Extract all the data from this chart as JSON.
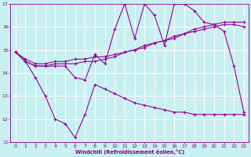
{
  "xlabel": "Windchill (Refroidissement éolien,°C)",
  "xlim": [
    -0.5,
    23.5
  ],
  "ylim": [
    11,
    17
  ],
  "yticks": [
    11,
    12,
    13,
    14,
    15,
    16,
    17
  ],
  "xticks": [
    0,
    1,
    2,
    3,
    4,
    5,
    6,
    7,
    8,
    9,
    10,
    11,
    12,
    13,
    14,
    15,
    16,
    17,
    18,
    19,
    20,
    21,
    22,
    23
  ],
  "background_color": "#c8f0f0",
  "line_color": "#990099",
  "grid_color": "#ffffff",
  "series1_x": [
    0,
    1,
    2,
    3,
    4,
    5,
    6,
    7,
    8,
    9,
    10,
    11,
    12,
    13,
    14,
    15,
    16,
    17,
    18,
    19,
    20,
    21,
    22,
    23
  ],
  "series1_y": [
    14.9,
    14.5,
    14.3,
    14.3,
    14.3,
    14.3,
    13.8,
    13.7,
    14.8,
    14.4,
    15.9,
    17.0,
    15.5,
    17.0,
    16.5,
    15.2,
    17.0,
    17.0,
    16.7,
    16.2,
    16.1,
    15.8,
    14.3,
    12.3
  ],
  "series2_x": [
    0,
    1,
    2,
    3,
    4,
    5,
    6,
    7,
    8,
    9,
    10,
    11,
    12,
    13,
    14,
    15,
    16,
    17,
    18,
    19,
    20,
    21,
    22,
    23
  ],
  "series2_y": [
    14.9,
    14.6,
    14.4,
    14.4,
    14.5,
    14.5,
    14.6,
    14.6,
    14.7,
    14.7,
    14.8,
    14.9,
    15.0,
    15.2,
    15.3,
    15.4,
    15.6,
    15.7,
    15.9,
    16.0,
    16.1,
    16.2,
    16.2,
    16.2
  ],
  "series3_x": [
    0,
    1,
    2,
    3,
    4,
    5,
    6,
    7,
    8,
    9,
    10,
    11,
    12,
    13,
    14,
    15,
    16,
    17,
    18,
    19,
    20,
    21,
    22,
    23
  ],
  "series3_y": [
    14.9,
    14.5,
    14.3,
    14.3,
    14.4,
    14.4,
    14.4,
    14.5,
    14.5,
    14.6,
    14.7,
    14.9,
    15.0,
    15.1,
    15.3,
    15.4,
    15.5,
    15.7,
    15.8,
    15.9,
    16.0,
    16.1,
    16.1,
    16.0
  ],
  "series4_x": [
    0,
    1,
    2,
    3,
    4,
    5,
    6,
    7,
    8,
    9,
    10,
    11,
    12,
    13,
    14,
    15,
    16,
    17,
    18,
    19,
    20,
    21,
    22,
    23
  ],
  "series4_y": [
    14.9,
    14.5,
    13.8,
    13.0,
    12.0,
    11.8,
    11.2,
    12.2,
    13.5,
    13.3,
    13.1,
    12.9,
    12.7,
    12.6,
    12.5,
    12.4,
    12.3,
    12.3,
    12.2,
    12.2,
    12.2,
    12.2,
    12.2,
    12.2
  ]
}
